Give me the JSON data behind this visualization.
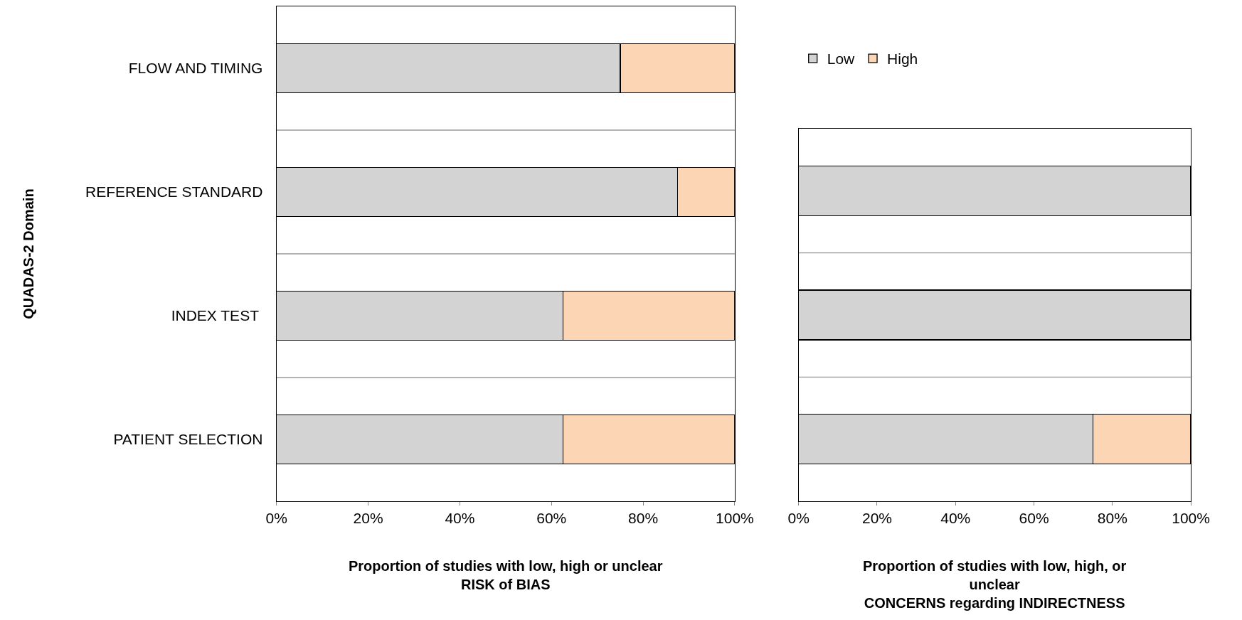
{
  "chart_data": [
    {
      "type": "bar",
      "orientation": "horizontal",
      "stacked": true,
      "ylabel": "QUADAS-2 Domain",
      "xlabel": "Proportion of studies with low, high or unclear\nRISK of BIAS",
      "categories": [
        "FLOW AND TIMING",
        "REFERENCE STANDARD",
        "INDEX TEST ",
        "PATIENT SELECTION"
      ],
      "series": [
        {
          "name": "Low",
          "color": "#d3d3d3",
          "values": [
            75,
            87.5,
            62.5,
            62.5
          ]
        },
        {
          "name": "High",
          "color": "#fcd5b5",
          "values": [
            25,
            12.5,
            37.5,
            37.5
          ]
        }
      ],
      "xlim": [
        0,
        100
      ],
      "xticks": [
        {
          "value": 0,
          "label": "0%"
        },
        {
          "value": 20,
          "label": "20%"
        },
        {
          "value": 40,
          "label": "40%"
        },
        {
          "value": 60,
          "label": "60%"
        },
        {
          "value": 80,
          "label": "80%"
        },
        {
          "value": 100,
          "label": "100%"
        }
      ],
      "grid": "y",
      "legend": "top right"
    },
    {
      "type": "bar",
      "orientation": "horizontal",
      "stacked": true,
      "xlabel": "Proportion of studies with low, high, or\nunclear\nCONCERNS regarding INDIRECTNESS",
      "categories": [
        null,
        null,
        null
      ],
      "series": [
        {
          "color": "#d3d3d3",
          "values": [
            100,
            100,
            75
          ]
        },
        {
          "color": "#fcd5b5",
          "values": [
            null,
            null,
            25
          ]
        }
      ],
      "xlim": [
        0,
        100
      ],
      "xticks": [
        {
          "value": 0,
          "label": "0%"
        },
        {
          "value": 20,
          "label": "20%"
        },
        {
          "value": 40,
          "label": "40%"
        },
        {
          "value": 60,
          "label": "60%"
        },
        {
          "value": 80,
          "label": "80%"
        },
        {
          "value": 100,
          "label": "100%"
        }
      ],
      "grid": "y",
      "tick_labels": "x"
    }
  ]
}
